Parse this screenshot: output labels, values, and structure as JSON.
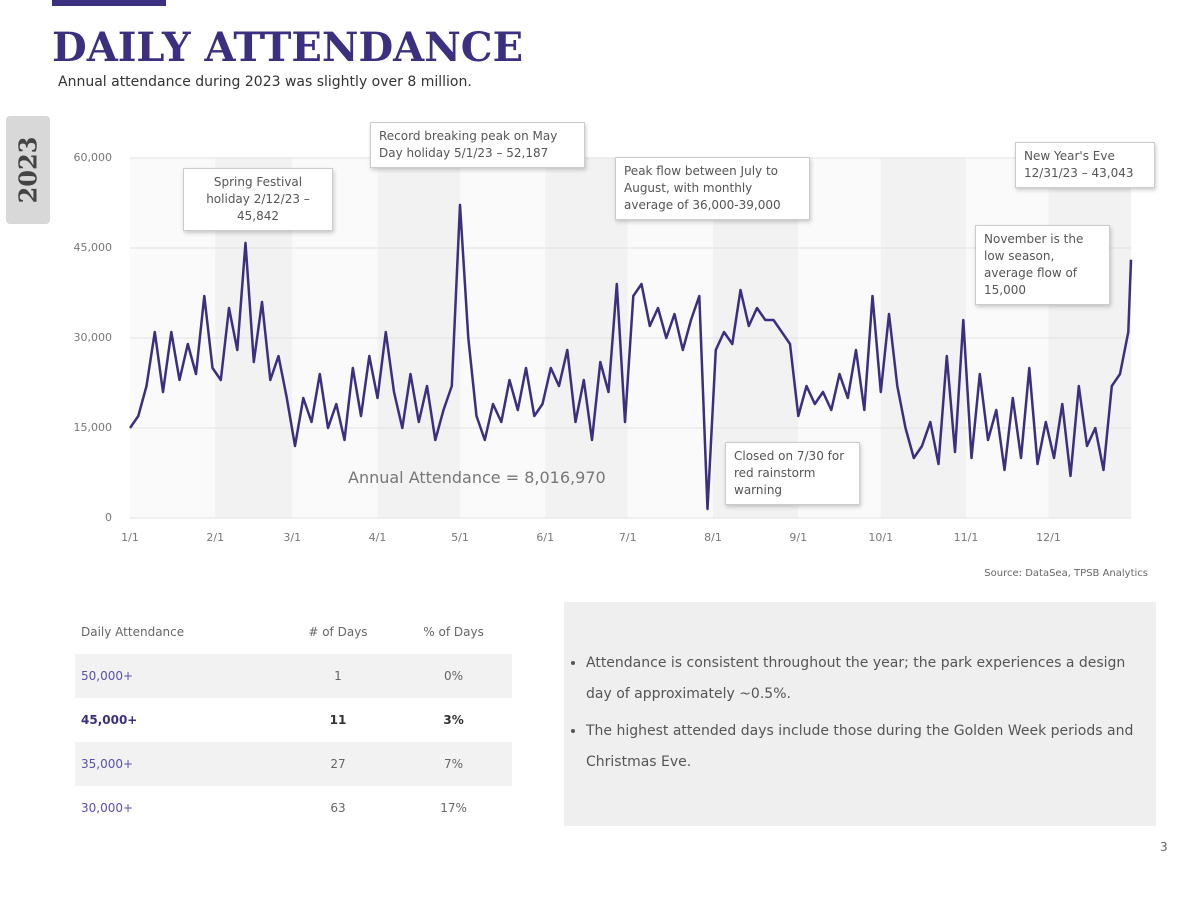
{
  "header": {
    "title": "DAILY ATTENDANCE",
    "subtitle": "Annual attendance during 2023 was slightly over 8 million.",
    "side_label": "2023"
  },
  "chart_data": {
    "type": "line",
    "x": [
      1,
      4,
      7,
      10,
      13,
      16,
      19,
      22,
      25,
      28,
      31,
      34,
      37,
      40,
      43,
      46,
      49,
      52,
      55,
      58,
      61,
      64,
      67,
      70,
      73,
      76,
      79,
      82,
      85,
      88,
      91,
      94,
      97,
      100,
      103,
      106,
      109,
      112,
      115,
      118,
      121,
      124,
      127,
      130,
      133,
      136,
      139,
      142,
      145,
      148,
      151,
      154,
      157,
      160,
      163,
      166,
      169,
      172,
      175,
      178,
      181,
      184,
      187,
      190,
      193,
      196,
      199,
      202,
      205,
      208,
      211,
      214,
      217,
      220,
      223,
      226,
      229,
      232,
      235,
      238,
      241,
      244,
      247,
      250,
      253,
      256,
      259,
      262,
      265,
      268,
      271,
      274,
      277,
      280,
      283,
      286,
      289,
      292,
      295,
      298,
      301,
      304,
      307,
      310,
      313,
      316,
      319,
      322,
      325,
      328,
      331,
      334,
      337,
      340,
      343,
      346,
      349,
      352,
      355,
      358,
      361,
      364,
      365
    ],
    "series": [
      {
        "name": "Daily Attendance",
        "color": "#3b2f80",
        "values": [
          15000,
          17000,
          22000,
          31000,
          21000,
          31000,
          23000,
          29000,
          24000,
          37000,
          25000,
          23000,
          35000,
          28000,
          45842,
          26000,
          36000,
          23000,
          27000,
          20000,
          12000,
          20000,
          16000,
          24000,
          15000,
          19000,
          13000,
          25000,
          17000,
          27000,
          20000,
          31000,
          21000,
          15000,
          24000,
          16000,
          22000,
          13000,
          18000,
          22000,
          52187,
          30000,
          17000,
          13000,
          19000,
          16000,
          23000,
          18000,
          25000,
          17000,
          19000,
          25000,
          22000,
          28000,
          16000,
          23000,
          13000,
          26000,
          21000,
          39000,
          16000,
          37000,
          39000,
          32000,
          35000,
          30000,
          34000,
          28000,
          33000,
          37000,
          1500,
          28000,
          31000,
          29000,
          38000,
          32000,
          35000,
          33000,
          33000,
          31000,
          29000,
          17000,
          22000,
          19000,
          21000,
          18000,
          24000,
          20000,
          28000,
          18000,
          37000,
          21000,
          34000,
          22000,
          15000,
          10000,
          12000,
          16000,
          9000,
          27000,
          11000,
          33000,
          10000,
          24000,
          13000,
          18000,
          8000,
          20000,
          10000,
          25000,
          9000,
          16000,
          10000,
          19000,
          7000,
          22000,
          12000,
          15000,
          8000,
          22000,
          24000,
          31000,
          43043
        ]
      }
    ],
    "xlim": [
      1,
      365
    ],
    "xticks": [
      {
        "value": 1,
        "label": "1/1"
      },
      {
        "value": 32,
        "label": "2/1"
      },
      {
        "value": 60,
        "label": "3/1"
      },
      {
        "value": 91,
        "label": "4/1"
      },
      {
        "value": 121,
        "label": "5/1"
      },
      {
        "value": 152,
        "label": "6/1"
      },
      {
        "value": 182,
        "label": "7/1"
      },
      {
        "value": 213,
        "label": "8/1"
      },
      {
        "value": 244,
        "label": "9/1"
      },
      {
        "value": 274,
        "label": "10/1"
      },
      {
        "value": 305,
        "label": "11/1"
      },
      {
        "value": 335,
        "label": "12/1"
      }
    ],
    "ylim": [
      0,
      60000
    ],
    "yticks": [
      0,
      {
        "value": 15000,
        "label": "15,000"
      },
      {
        "value": 30000,
        "label": "30,000"
      },
      {
        "value": 45000,
        "label": "45,000"
      },
      {
        "value": 60000,
        "label": "60,000"
      }
    ],
    "grid": true,
    "annotations": [
      "Spring Festival holiday 2/12/23 – 45,842",
      "Record breaking peak on May Day holiday 5/1/23 – 52,187",
      "Peak flow between July to August, with monthly average of 36,000-39,000",
      "Closed on 7/30 for red rainstorm warning",
      "November is the low season, average flow of 15,000",
      "New Year's Eve 12/31/23 – 43,043"
    ],
    "total_label": "Annual Attendance = 8,016,970",
    "source": "Source: DataSea, TPSB Analytics"
  },
  "table": {
    "headers": [
      "Daily Attendance",
      "# of Days",
      "% of Days"
    ],
    "rows": [
      [
        "50,000+",
        "1",
        "0%"
      ],
      [
        "45,000+",
        "11",
        "3%"
      ],
      [
        "35,000+",
        "27",
        "7%"
      ],
      [
        "30,000+",
        "63",
        "17%"
      ]
    ]
  },
  "bullets": [
    "Attendance is consistent throughout the year; the park experiences a design day of approximately ~0.5%.",
    "The highest attended days include those during the Golden Week periods and Christmas Eve."
  ],
  "page_number": "3"
}
